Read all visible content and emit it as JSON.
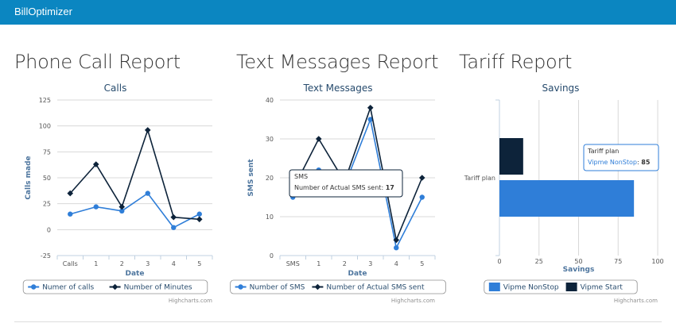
{
  "app": {
    "brand": "BillOptimizer"
  },
  "sections": [
    {
      "title": "Phone Call Report"
    },
    {
      "title": "Text Messages Report"
    },
    {
      "title": "Tariff Report"
    }
  ],
  "credit": "Highcharts.com",
  "colors": {
    "navbar": "#0b86c1",
    "series_light": "#2f7ed8",
    "series_dark": "#0d233a"
  },
  "chart_data": [
    {
      "type": "line",
      "title": "Calls",
      "xlabel": "Date",
      "ylabel": "Calls made",
      "categories": [
        "Calls",
        "1",
        "2",
        "3",
        "4",
        "5"
      ],
      "ylim": [
        -25,
        125
      ],
      "yticks": [
        -25,
        0,
        25,
        50,
        75,
        100,
        125
      ],
      "series": [
        {
          "name": "Numer of calls",
          "values": [
            15,
            22,
            18,
            35,
            2,
            15
          ],
          "color": "#2f7ed8",
          "marker": "circle"
        },
        {
          "name": "Number of Minutes",
          "values": [
            35,
            63,
            22,
            96,
            12,
            10
          ],
          "color": "#0d233a",
          "marker": "diamond"
        }
      ],
      "legend": "bottom-center",
      "grid": true
    },
    {
      "type": "line",
      "title": "Text Messages",
      "xlabel": "Date",
      "ylabel": "SMS sent",
      "categories": [
        "SMS",
        "1",
        "2",
        "3",
        "4",
        "5"
      ],
      "ylim": [
        0,
        40
      ],
      "yticks": [
        0,
        10,
        20,
        30,
        40
      ],
      "series": [
        {
          "name": "Number of SMS",
          "values": [
            15,
            22,
            18,
            35,
            2,
            15
          ],
          "color": "#2f7ed8",
          "marker": "circle"
        },
        {
          "name": "Number of Actual SMS sent",
          "values": [
            17,
            30,
            19,
            38,
            4,
            20
          ],
          "color": "#0d233a",
          "marker": "diamond"
        }
      ],
      "legend": "bottom-center",
      "grid": true,
      "tooltip": {
        "header": "SMS",
        "series": "Number of Actual SMS sent",
        "value": "17"
      }
    },
    {
      "type": "bar",
      "title": "Savings",
      "xlabel": "Savings",
      "categories": [
        "Tariff plan"
      ],
      "xlim": [
        0,
        100
      ],
      "xticks": [
        0,
        25,
        50,
        75,
        100
      ],
      "series": [
        {
          "name": "Vipme NonStop",
          "values": [
            85
          ],
          "color": "#2f7ed8"
        },
        {
          "name": "Vipme Start",
          "values": [
            15
          ],
          "color": "#0d233a"
        }
      ],
      "legend": "bottom-center",
      "grid": true,
      "tooltip": {
        "header": "Tariff plan",
        "series": "Vipme NonStop",
        "value": "85"
      }
    }
  ]
}
